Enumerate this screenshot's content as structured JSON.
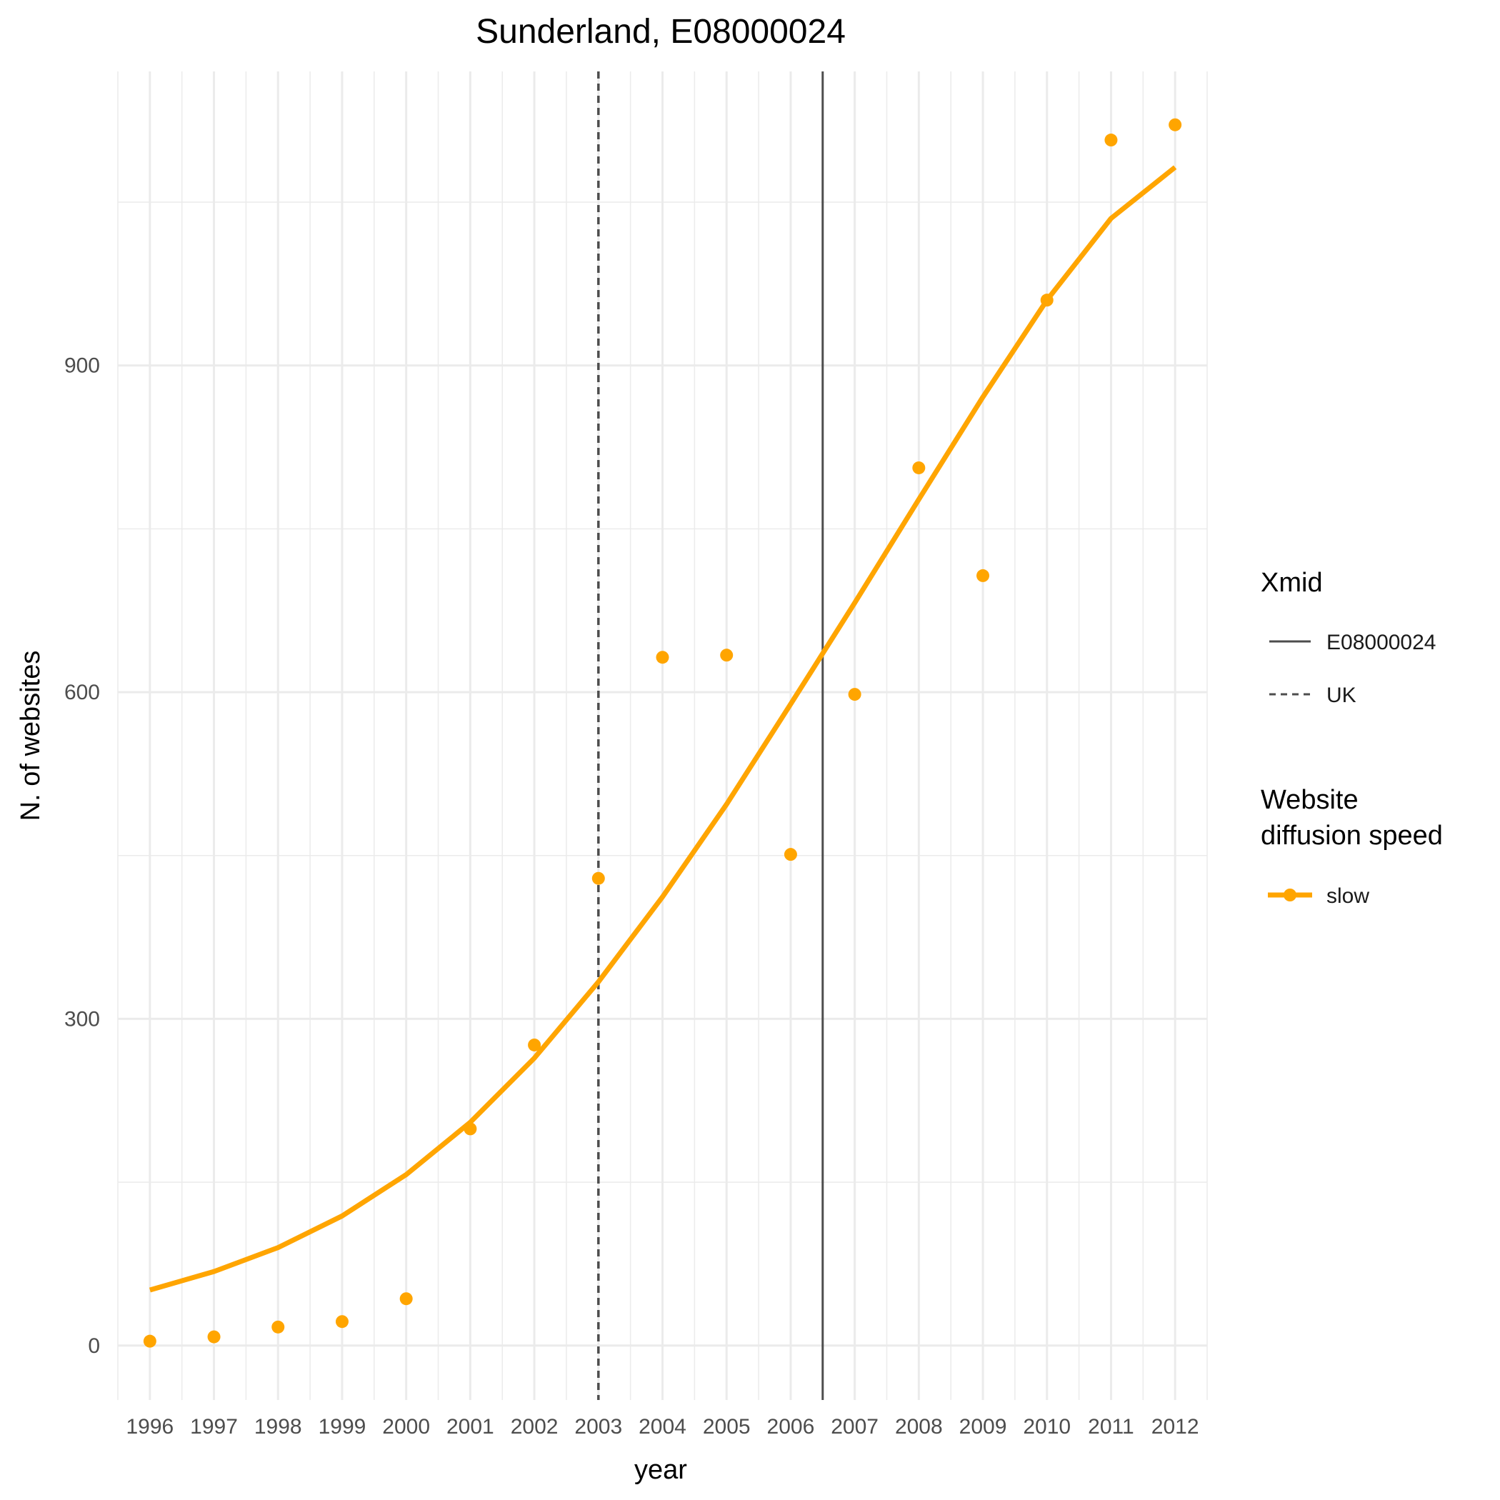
{
  "chart_data": {
    "type": "line",
    "title": "Sunderland, E08000024",
    "xlabel": "year",
    "ylabel": "N. of websites",
    "categories": [
      "1996",
      "1997",
      "1998",
      "1999",
      "2000",
      "2001",
      "2002",
      "2003",
      "2004",
      "2005",
      "2006",
      "2007",
      "2008",
      "2009",
      "2010",
      "2011",
      "2012"
    ],
    "xlim": [
      1995.5,
      2012.5
    ],
    "ylim": [
      -50,
      1170
    ],
    "yticks": [
      0,
      300,
      600,
      900
    ],
    "grid": true,
    "legend_position": "right",
    "series": [
      {
        "name": "slow",
        "kind": "points",
        "color": "#FFA500",
        "values": [
          4,
          8,
          17,
          22,
          43,
          199,
          276,
          429,
          632,
          634,
          451,
          598,
          806,
          707,
          960,
          1107,
          1121
        ]
      },
      {
        "name": "slow",
        "kind": "fitted-line",
        "color": "#FFA500",
        "values": [
          51,
          68,
          90,
          119,
          157,
          205,
          264,
          334,
          412,
          497,
          589,
          682,
          777,
          871,
          960,
          1035,
          1082
        ]
      }
    ],
    "vlines": [
      {
        "label": "E08000024",
        "x": 2006.5,
        "style": "solid",
        "color": "#4d4d4d"
      },
      {
        "label": "UK",
        "x": 2003.0,
        "style": "dashed",
        "color": "#4d4d4d"
      }
    ],
    "legends": [
      {
        "title": "Xmid",
        "entries": [
          {
            "label": "E08000024",
            "style": "solid"
          },
          {
            "label": "UK",
            "style": "dashed"
          }
        ]
      },
      {
        "title": "Website diffusion speed",
        "title_lines": [
          "Website",
          "diffusion speed"
        ],
        "entries": [
          {
            "label": "slow",
            "style": "line-point",
            "color": "#FFA500"
          }
        ]
      }
    ]
  }
}
